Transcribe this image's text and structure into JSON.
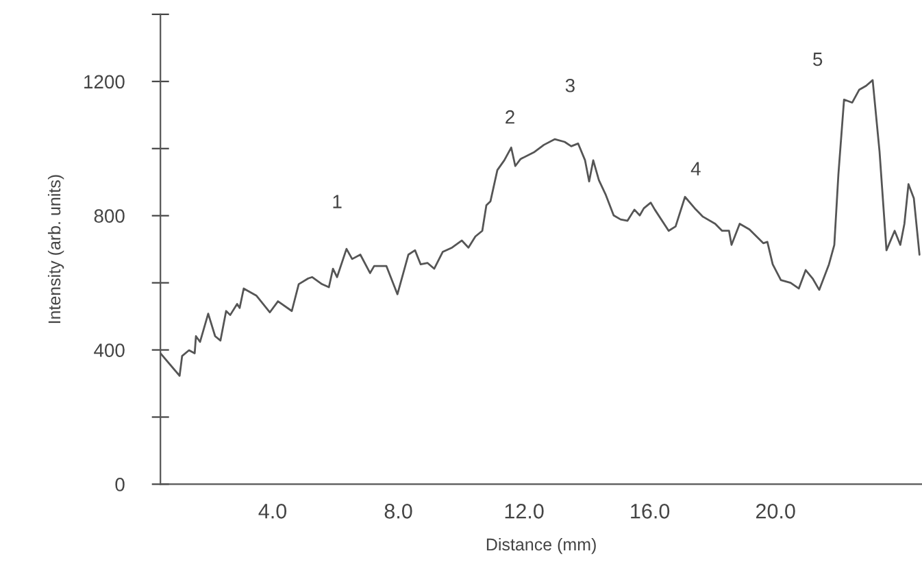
{
  "chart_data": {
    "type": "line",
    "xlabel": "Distance (mm)",
    "ylabel": "Intensity (arb. units)",
    "xlim": [
      0.43,
      24.66
    ],
    "ylim": [
      0,
      1400
    ],
    "xticks": [
      {
        "value": 4,
        "label": "4.0"
      },
      {
        "value": 8,
        "label": "8.0"
      },
      {
        "value": 12,
        "label": "12.0"
      },
      {
        "value": 16,
        "label": "16.0"
      },
      {
        "value": 20,
        "label": "20.0"
      }
    ],
    "yticks": [
      0,
      {
        "value": 200,
        "label": null
      },
      400,
      {
        "value": 600,
        "label": null
      },
      800,
      {
        "value": 1000,
        "label": null
      },
      1200,
      {
        "value": 1400,
        "label": null
      }
    ],
    "grid": false,
    "legend": false,
    "marker": "none",
    "line_style": "solid",
    "series": [
      {
        "color": "#555555",
        "x": [
          0.43,
          1.04,
          1.12,
          1.34,
          1.52,
          1.56,
          1.69,
          1.95,
          2.17,
          2.34,
          2.52,
          2.65,
          2.87,
          2.95,
          3.08,
          3.48,
          3.91,
          4.17,
          4.61,
          4.83,
          5.13,
          5.26,
          5.57,
          5.79,
          5.92,
          6.05,
          6.35,
          6.53,
          6.79,
          7.1,
          7.23,
          7.62,
          7.97,
          8.32,
          8.53,
          8.71,
          8.93,
          9.14,
          9.41,
          9.71,
          10.02,
          10.23,
          10.45,
          10.67,
          10.8,
          10.93,
          11.15,
          11.37,
          11.59,
          11.72,
          11.89,
          12.33,
          12.63,
          12.98,
          13.29,
          13.5,
          13.72,
          13.94,
          14.07,
          14.2,
          14.38,
          14.59,
          14.85,
          15.07,
          15.29,
          15.51,
          15.68,
          15.81,
          16.03,
          16.16,
          16.6,
          16.82,
          17.12,
          17.43,
          17.69,
          18.08,
          18.3,
          18.52,
          18.6,
          18.86,
          19.17,
          19.61,
          19.74,
          19.91,
          20.17,
          20.48,
          20.74,
          20.96,
          21.18,
          21.39,
          21.7,
          21.87,
          22.0,
          22.18,
          22.44,
          22.66,
          22.88,
          23.09,
          23.31,
          23.53,
          23.79,
          23.97,
          24.1,
          24.23,
          24.4,
          24.58
        ],
        "values": [
          390,
          323,
          382,
          399,
          390,
          441,
          424,
          508,
          441,
          428,
          516,
          504,
          537,
          525,
          583,
          562,
          512,
          545,
          516,
          596,
          613,
          617,
          596,
          587,
          642,
          617,
          701,
          671,
          684,
          629,
          650,
          650,
          566,
          684,
          697,
          655,
          659,
          642,
          692,
          705,
          726,
          705,
          738,
          755,
          831,
          843,
          936,
          965,
          1003,
          948,
          969,
          990,
          1011,
          1028,
          1020,
          1007,
          1015,
          965,
          902,
          965,
          906,
          864,
          801,
          789,
          785,
          818,
          801,
          822,
          839,
          818,
          755,
          768,
          856,
          822,
          797,
          776,
          755,
          755,
          713,
          776,
          759,
          718,
          722,
          655,
          608,
          600,
          583,
          638,
          613,
          579,
          655,
          713,
          923,
          1146,
          1137,
          1175,
          1187,
          1204,
          990,
          697,
          755,
          713,
          776,
          894,
          852,
          684
        ]
      }
    ],
    "annotations": [
      "1",
      "2",
      "3",
      "4",
      "5"
    ]
  }
}
